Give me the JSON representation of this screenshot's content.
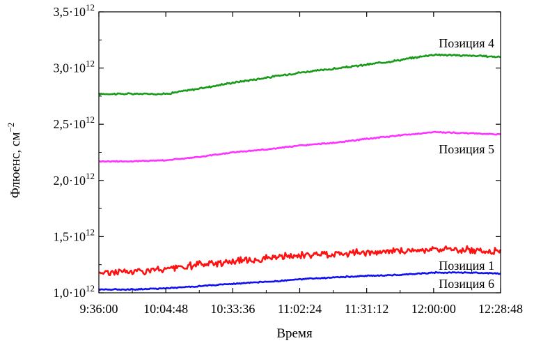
{
  "chart_data": {
    "type": "line",
    "xlabel": "Время",
    "ylabel": "Флюенс, см",
    "ylabel_sup": "−2",
    "xlim": [
      "9:36:00",
      "12:28:48"
    ],
    "x_ticks": [
      "9:36:00",
      "10:04:48",
      "10:33:36",
      "11:02:24",
      "11:31:12",
      "12:00:00",
      "12:28:48"
    ],
    "ylim": [
      1000000000000.0,
      3500000000000.0
    ],
    "y_ticks": [
      {
        "value": 1000000000000.0,
        "mant": "1,0",
        "base": "10",
        "exp": "12"
      },
      {
        "value": 1500000000000.0,
        "mant": "1,5",
        "base": "10",
        "exp": "12"
      },
      {
        "value": 2000000000000.0,
        "mant": "2,0",
        "base": "10",
        "exp": "12"
      },
      {
        "value": 2500000000000.0,
        "mant": "2,5",
        "base": "10",
        "exp": "12"
      },
      {
        "value": 3000000000000.0,
        "mant": "3,0",
        "base": "10",
        "exp": "12"
      },
      {
        "value": 3500000000000.0,
        "mant": "3,5",
        "base": "10",
        "exp": "12"
      }
    ],
    "grid": false,
    "series": [
      {
        "name": "Позиция 4",
        "color": "#1a9a1a",
        "noise": 6000000000.0,
        "x": [
          "9:36:00",
          "9:50:00",
          "10:04:48",
          "10:20:00",
          "10:33:36",
          "10:50:00",
          "11:02:24",
          "11:20:00",
          "11:31:12",
          "11:45:00",
          "12:00:00",
          "12:15:00",
          "12:28:48"
        ],
        "values": [
          2770000000000.0,
          2770000000000.0,
          2770000000000.0,
          2820000000000.0,
          2870000000000.0,
          2920000000000.0,
          2960000000000.0,
          3000000000000.0,
          3030000000000.0,
          3070000000000.0,
          3120000000000.0,
          3110000000000.0,
          3100000000000.0
        ]
      },
      {
        "name": "Позиция 5",
        "color": "#ff33ff",
        "noise": 4000000000.0,
        "x": [
          "9:36:00",
          "9:50:00",
          "10:04:48",
          "10:20:00",
          "10:33:36",
          "10:50:00",
          "11:02:24",
          "11:20:00",
          "11:31:12",
          "11:45:00",
          "12:00:00",
          "12:15:00",
          "12:28:48"
        ],
        "values": [
          2170000000000.0,
          2170000000000.0,
          2180000000000.0,
          2210000000000.0,
          2250000000000.0,
          2280000000000.0,
          2310000000000.0,
          2340000000000.0,
          2370000000000.0,
          2400000000000.0,
          2430000000000.0,
          2420000000000.0,
          2410000000000.0
        ]
      },
      {
        "name": "Позиция 1",
        "color": "#ff1111",
        "noise": 25000000000.0,
        "x": [
          "9:36:00",
          "9:50:00",
          "10:04:48",
          "10:20:00",
          "10:33:36",
          "10:50:00",
          "11:02:24",
          "11:20:00",
          "11:31:12",
          "11:45:00",
          "12:00:00",
          "12:15:00",
          "12:28:48"
        ],
        "values": [
          1180000000000.0,
          1190000000000.0,
          1210000000000.0,
          1250000000000.0,
          1280000000000.0,
          1310000000000.0,
          1330000000000.0,
          1350000000000.0,
          1360000000000.0,
          1370000000000.0,
          1390000000000.0,
          1380000000000.0,
          1370000000000.0
        ]
      },
      {
        "name": "Позиция 6",
        "color": "#1111ee",
        "noise": 4000000000.0,
        "x": [
          "9:36:00",
          "9:50:00",
          "10:04:48",
          "10:20:00",
          "10:33:36",
          "10:50:00",
          "11:02:24",
          "11:20:00",
          "11:31:12",
          "11:45:00",
          "12:00:00",
          "12:15:00",
          "12:28:48"
        ],
        "values": [
          1030000000000.0,
          1030000000000.0,
          1040000000000.0,
          1060000000000.0,
          1080000000000.0,
          1100000000000.0,
          1120000000000.0,
          1140000000000.0,
          1150000000000.0,
          1160000000000.0,
          1180000000000.0,
          1180000000000.0,
          1170000000000.0
        ]
      }
    ]
  }
}
